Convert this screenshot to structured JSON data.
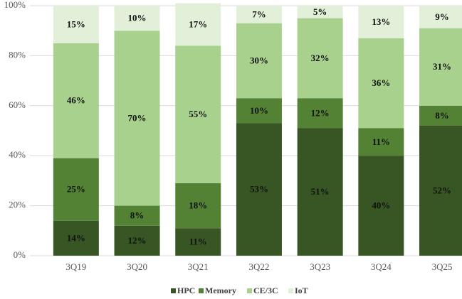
{
  "chart_data": {
    "type": "stacked_bar",
    "categories": [
      "3Q19",
      "3Q20",
      "3Q21",
      "3Q22",
      "3Q23",
      "3Q24",
      "3Q25"
    ],
    "series": [
      {
        "name": "HPC",
        "color": "#375623",
        "values": [
          14,
          12,
          11,
          53,
          51,
          40,
          52
        ],
        "value_labels": [
          "14%",
          "12%",
          "11%",
          "53%",
          "51%",
          "40%",
          "52%"
        ]
      },
      {
        "name": "Memory",
        "color": "#548235",
        "values": [
          25,
          8,
          18,
          10,
          12,
          11,
          8
        ],
        "value_labels": [
          "25%",
          "8%",
          "18%",
          "10%",
          "12%",
          "11%",
          "8%"
        ]
      },
      {
        "name": "CE/3C",
        "color": "#a9d18e",
        "values": [
          46,
          70,
          55,
          30,
          32,
          36,
          31
        ],
        "value_labels": [
          "46%",
          "70%",
          "55%",
          "30%",
          "32%",
          "36%",
          "31%"
        ]
      },
      {
        "name": "IoT",
        "color": "#e2efd9",
        "values": [
          15,
          10,
          17,
          7,
          5,
          13,
          9
        ],
        "value_labels": [
          "15%",
          "10%",
          "17%",
          "7%",
          "5%",
          "13%",
          "9%"
        ]
      }
    ],
    "ylim": [
      0,
      100
    ],
    "yticks": [
      {
        "value": 0,
        "label": "0%"
      },
      {
        "value": 20,
        "label": "20%"
      },
      {
        "value": 40,
        "label": "40%"
      },
      {
        "value": 60,
        "label": "60%"
      },
      {
        "value": 80,
        "label": "80%"
      },
      {
        "value": 100,
        "label": "100%"
      }
    ],
    "grid": true,
    "legend": "bottom"
  }
}
